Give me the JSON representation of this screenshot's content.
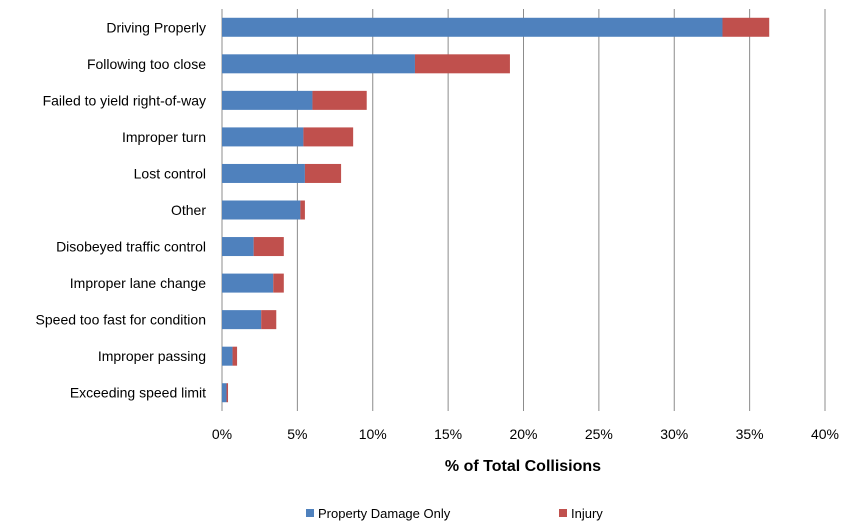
{
  "chart_data": {
    "type": "bar",
    "orientation": "horizontal",
    "stacked": true,
    "categories": [
      "Driving Properly",
      "Following too close",
      "Failed to yield right-of-way",
      "Improper turn",
      "Lost control",
      "Other",
      "Disobeyed traffic control",
      "Improper lane change",
      "Speed too fast for condition",
      "Improper passing",
      "Exceeding speed limit"
    ],
    "series": [
      {
        "name": "Property Damage Only",
        "color": "#4f81bd",
        "values": [
          33.2,
          12.8,
          6.0,
          5.4,
          5.5,
          5.2,
          2.1,
          3.4,
          2.6,
          0.7,
          0.3
        ]
      },
      {
        "name": "Injury",
        "color": "#c0504d",
        "values": [
          3.1,
          6.3,
          3.6,
          3.3,
          2.4,
          0.3,
          2.0,
          0.7,
          1.0,
          0.3,
          0.1
        ]
      }
    ],
    "xlabel": "% of Total Collisions",
    "ylabel": "",
    "xlim": [
      0,
      40
    ],
    "xticks": [
      0,
      5,
      10,
      15,
      20,
      25,
      30,
      35,
      40
    ],
    "xtick_suffix": "%",
    "grid": "vertical",
    "legend": "bottom"
  }
}
